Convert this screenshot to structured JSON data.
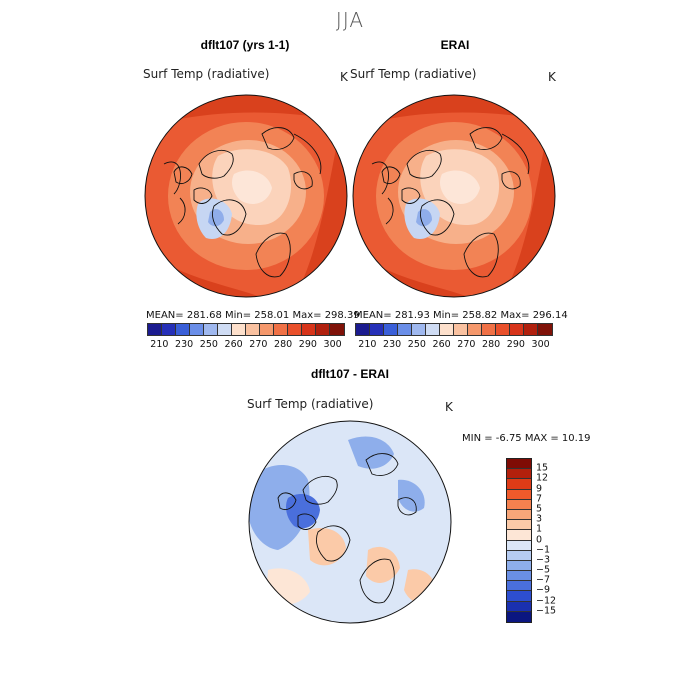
{
  "main_title": "JJA",
  "panels": {
    "left": {
      "title": "dflt107 (yrs 1-1)",
      "variable": "Surf Temp (radiative)",
      "unit": "K",
      "stats": "MEAN= 281.68  Min= 258.01  Max= 298.39"
    },
    "right": {
      "title": "ERAI",
      "variable": "Surf Temp (radiative)",
      "unit": "K",
      "stats": "MEAN= 281.93  Min= 258.82  Max= 296.14"
    },
    "diff": {
      "title": "dflt107 - ERAI",
      "variable": "Surf Temp (radiative)",
      "unit": "K",
      "stats": "MIN =   -6.75 MAX =   10.19"
    }
  },
  "abs_colorbar": {
    "colors": [
      "#1b1b8f",
      "#2630b8",
      "#3a5fd8",
      "#6a8ee8",
      "#9fb8ef",
      "#cfdcf4",
      "#fde0cc",
      "#f9c1a0",
      "#f5986c",
      "#f07146",
      "#e9502b",
      "#d7341a",
      "#b0200e",
      "#7f1208"
    ],
    "tick_labels": [
      "210",
      "230",
      "250",
      "260",
      "270",
      "280",
      "290",
      "300"
    ]
  },
  "diff_colorbar": {
    "colors": [
      "#7f0c05",
      "#b3200c",
      "#de3b17",
      "#f05a2b",
      "#f5814f",
      "#f8a679",
      "#fbcaa8",
      "#fde6d6",
      "#dbe6f7",
      "#b6ccf2",
      "#8eaeeb",
      "#6a8fe4",
      "#4a6fdc",
      "#2d4ed0",
      "#1a30b0",
      "#0b1680"
    ],
    "labels": [
      "15",
      "12",
      "9",
      "7",
      "5",
      "3",
      "1",
      "0",
      "−1",
      "−3",
      "−5",
      "−7",
      "−9",
      "−12",
      "−15"
    ]
  },
  "map_colors": {
    "ocean_warm": "#ea5a33",
    "ocean_hot": "#d9411d",
    "mid": "#f28355",
    "cool": "#f7b08a",
    "arctic": "#fbd3bb",
    "ice": "#fde6d8",
    "greenland": "#c6d6f3",
    "greenland_core": "#8fadea",
    "diff_base": "#dbe6f7",
    "diff_blue": "#8eaeeb",
    "diff_blue_dark": "#4a6fdc",
    "diff_warm": "#fbcaa8",
    "diff_white": "#fde6d6"
  }
}
